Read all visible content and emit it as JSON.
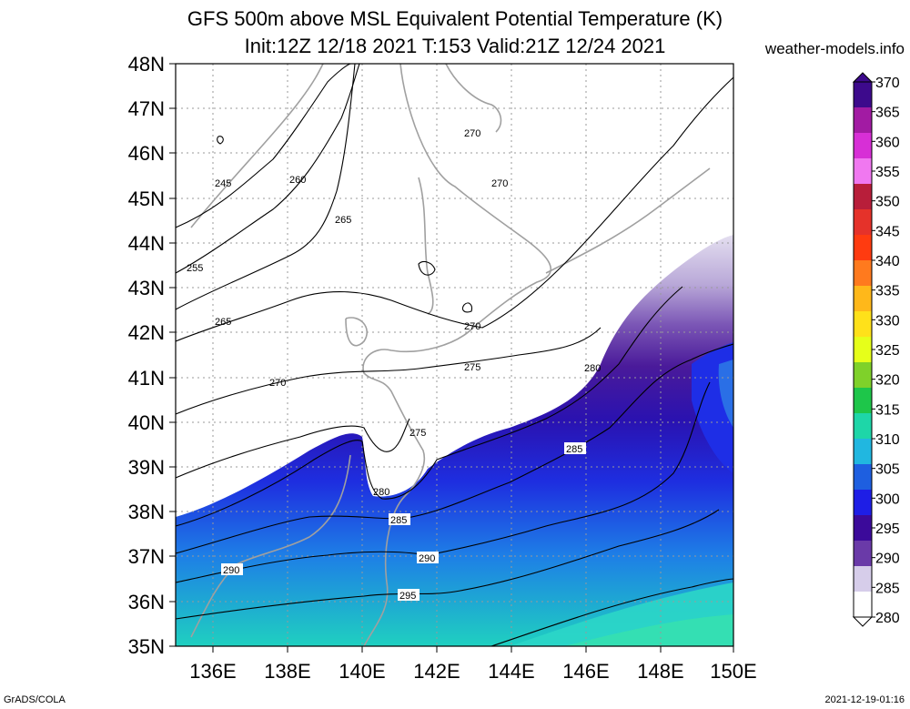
{
  "title": {
    "line1": "GFS 500m above MSL Equivalent Potential Temperature (K)",
    "line2": "Init:12Z 12/18 2021 T:153 Valid:21Z 12/24 2021"
  },
  "credit": "weather-models.info",
  "footer": {
    "left": "GrADS/COLA",
    "right": "2021-12-19-01:16"
  },
  "axes": {
    "lat_labels": [
      "48N",
      "47N",
      "46N",
      "45N",
      "44N",
      "43N",
      "42N",
      "41N",
      "40N",
      "39N",
      "38N",
      "37N",
      "36N",
      "35N"
    ],
    "lon_labels": [
      "136E",
      "138E",
      "140E",
      "142E",
      "144E",
      "146E",
      "148E",
      "150E"
    ]
  },
  "colorbar": {
    "labels": [
      "370",
      "365",
      "360",
      "355",
      "350",
      "345",
      "340",
      "335",
      "330",
      "325",
      "320",
      "315",
      "310",
      "305",
      "300",
      "295",
      "290",
      "285",
      "280"
    ],
    "colors": [
      "#3d0a8c",
      "#a21ba3",
      "#d72fd6",
      "#f078f0",
      "#b81e3a",
      "#e5322a",
      "#ff3b10",
      "#ff7a1e",
      "#ffb81a",
      "#ffe11a",
      "#e6ff1a",
      "#7fd12a",
      "#1ec64a",
      "#1ed6a8",
      "#21b7e0",
      "#1e5fe0",
      "#1e1ee6",
      "#3b0a9a",
      "#6a3aa8",
      "#d6cdea",
      "#ffffff"
    ]
  },
  "contour_labels": [
    {
      "text": "245"
    },
    {
      "text": "255"
    },
    {
      "text": "260"
    },
    {
      "text": "265"
    },
    {
      "text": "265"
    },
    {
      "text": "270"
    },
    {
      "text": "270"
    },
    {
      "text": "270"
    },
    {
      "text": "270"
    },
    {
      "text": "275"
    },
    {
      "text": "275"
    },
    {
      "text": "280"
    },
    {
      "text": "280"
    },
    {
      "text": "285"
    },
    {
      "text": "285"
    },
    {
      "text": "290"
    },
    {
      "text": "290"
    },
    {
      "text": "295"
    }
  ]
}
